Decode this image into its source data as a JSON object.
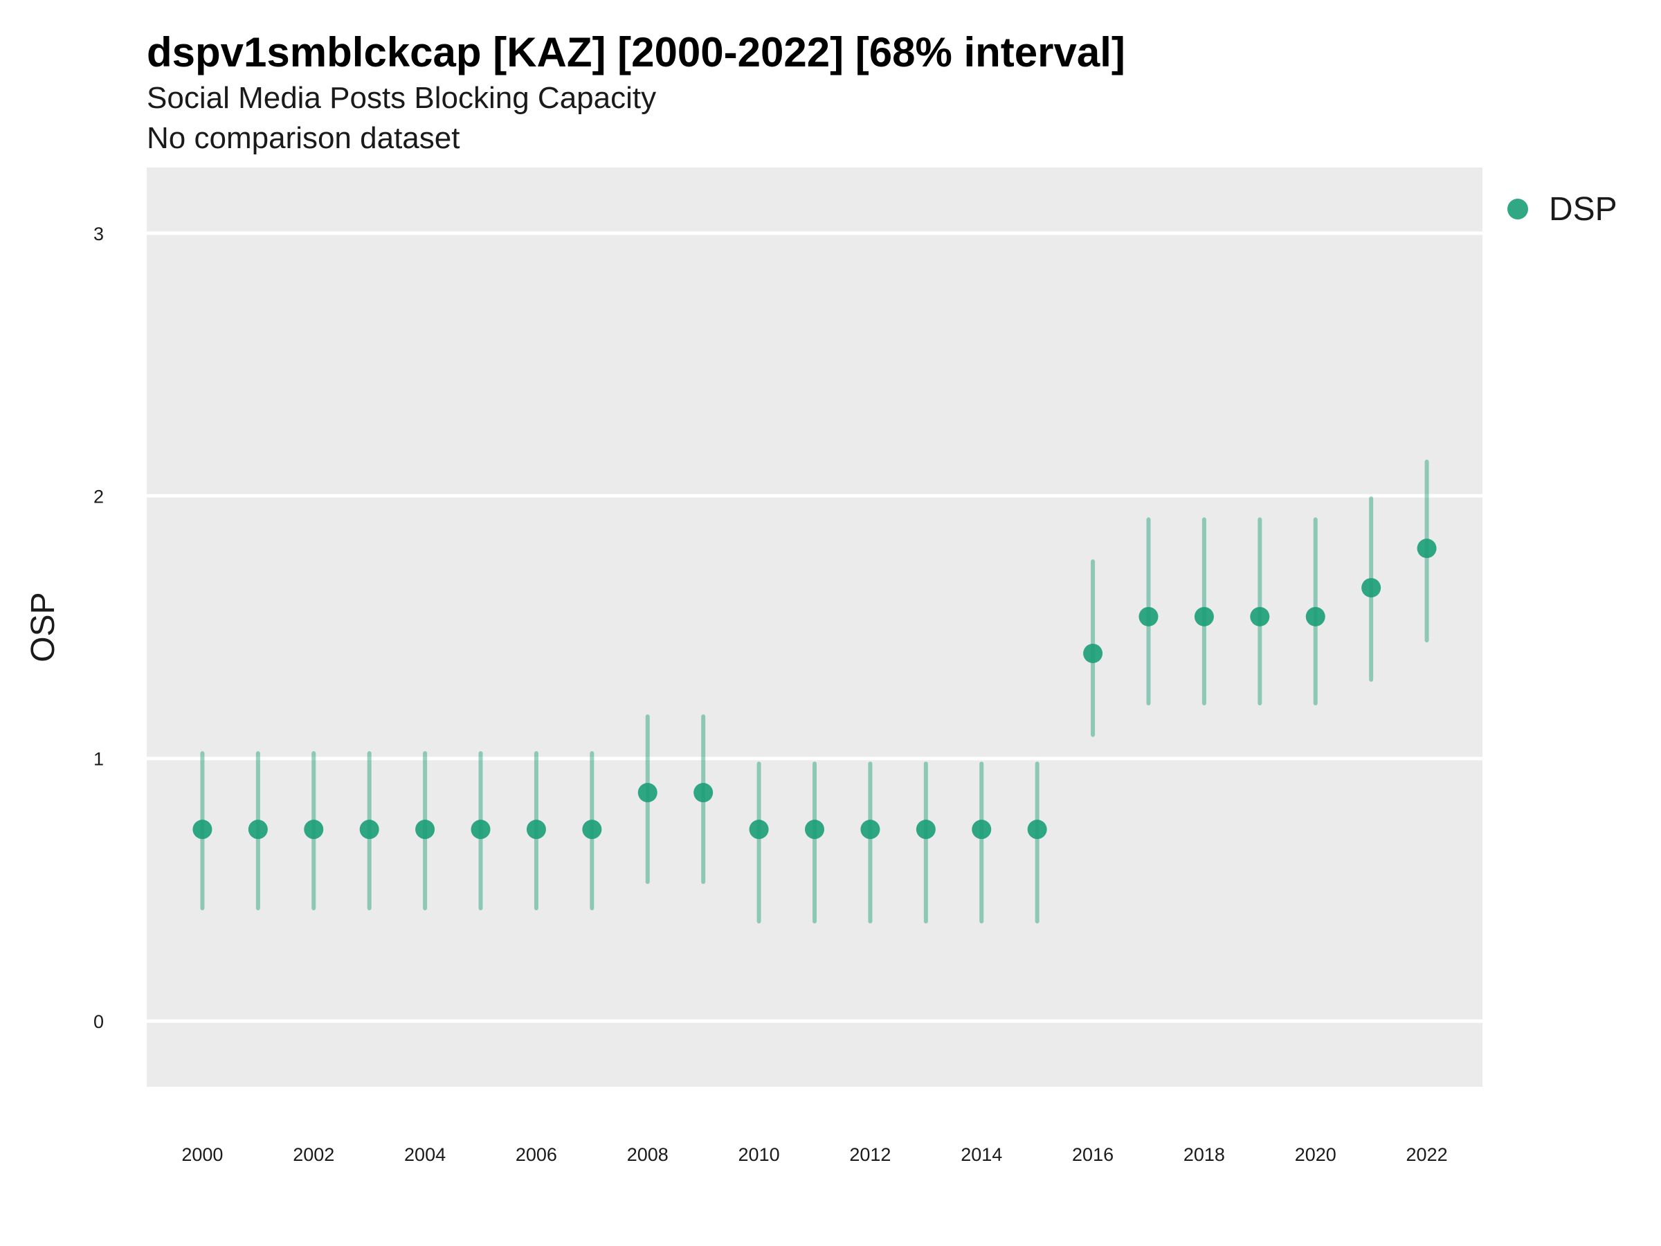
{
  "chart_data": {
    "type": "scatter",
    "title": "dspv1smblckcap [KAZ] [2000-2022] [68% interval]",
    "subtitle": "Social Media Posts Blocking Capacity",
    "caption": "No comparison dataset",
    "xlabel": "",
    "ylabel": "OSP",
    "xlim": [
      1999,
      2023
    ],
    "ylim": [
      -0.25,
      3.25
    ],
    "x_ticks": [
      2000,
      2002,
      2004,
      2006,
      2008,
      2010,
      2012,
      2014,
      2016,
      2018,
      2020,
      2022
    ],
    "y_ticks": [
      0,
      1,
      2,
      3
    ],
    "grid": true,
    "legend_position": "top-right",
    "series": [
      {
        "name": "DSP",
        "color": "#1b9e77",
        "x": [
          2000,
          2001,
          2002,
          2003,
          2004,
          2005,
          2006,
          2007,
          2008,
          2009,
          2010,
          2011,
          2012,
          2013,
          2014,
          2015,
          2016,
          2017,
          2018,
          2019,
          2020,
          2021,
          2022
        ],
        "values": [
          0.73,
          0.73,
          0.73,
          0.73,
          0.73,
          0.73,
          0.73,
          0.73,
          0.87,
          0.87,
          0.73,
          0.73,
          0.73,
          0.73,
          0.73,
          0.73,
          1.4,
          1.54,
          1.54,
          1.54,
          1.54,
          1.65,
          1.8
        ],
        "lower": [
          0.43,
          0.43,
          0.43,
          0.43,
          0.43,
          0.43,
          0.43,
          0.43,
          0.53,
          0.53,
          0.38,
          0.38,
          0.38,
          0.38,
          0.38,
          0.38,
          1.09,
          1.21,
          1.21,
          1.21,
          1.21,
          1.3,
          1.45
        ],
        "upper": [
          1.02,
          1.02,
          1.02,
          1.02,
          1.02,
          1.02,
          1.02,
          1.02,
          1.16,
          1.16,
          0.98,
          0.98,
          0.98,
          0.98,
          0.98,
          0.98,
          1.75,
          1.91,
          1.91,
          1.91,
          1.91,
          1.99,
          2.13
        ]
      }
    ]
  }
}
